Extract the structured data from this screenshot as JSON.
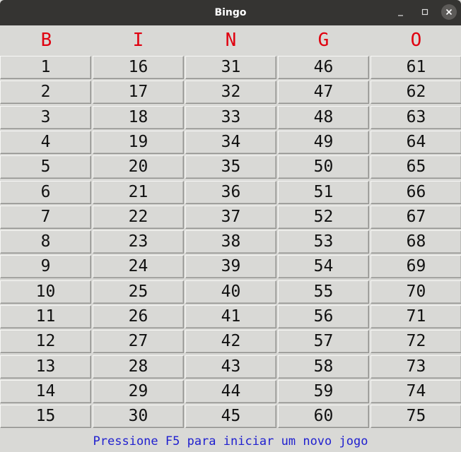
{
  "window": {
    "title": "Bingo",
    "minimize_icon": "minimize-icon",
    "maximize_icon": "maximize-icon",
    "close_icon": "close-icon"
  },
  "colors": {
    "header_letters": "#e0000f",
    "status_text": "#1f1fcf",
    "background": "#d9d9d6",
    "titlebar": "#353432"
  },
  "board": {
    "letters": [
      "B",
      "I",
      "N",
      "G",
      "O"
    ],
    "columns": [
      [
        "1",
        "2",
        "3",
        "4",
        "5",
        "6",
        "7",
        "8",
        "9",
        "10",
        "11",
        "12",
        "13",
        "14",
        "15"
      ],
      [
        "16",
        "17",
        "18",
        "19",
        "20",
        "21",
        "22",
        "23",
        "24",
        "25",
        "26",
        "27",
        "28",
        "29",
        "30"
      ],
      [
        "31",
        "32",
        "33",
        "34",
        "35",
        "36",
        "37",
        "38",
        "39",
        "40",
        "41",
        "42",
        "43",
        "44",
        "45"
      ],
      [
        "46",
        "47",
        "48",
        "49",
        "50",
        "51",
        "52",
        "53",
        "54",
        "55",
        "56",
        "57",
        "58",
        "59",
        "60"
      ],
      [
        "61",
        "62",
        "63",
        "64",
        "65",
        "66",
        "67",
        "68",
        "69",
        "70",
        "71",
        "72",
        "73",
        "74",
        "75"
      ]
    ]
  },
  "status": {
    "message": "Pressione F5 para iniciar um novo jogo"
  }
}
